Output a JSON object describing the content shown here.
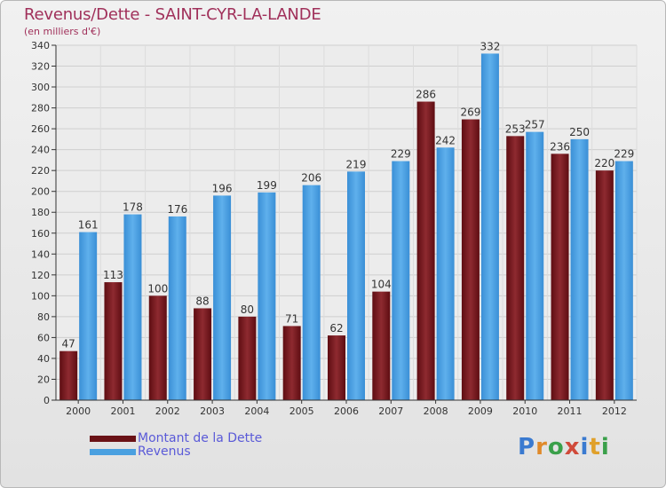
{
  "chart_data": {
    "type": "bar",
    "title": "Revenus/Dette - SAINT-CYR-LA-LANDE",
    "subtitle": "(en milliers d'€)",
    "categories": [
      "2000",
      "2001",
      "2002",
      "2003",
      "2004",
      "2005",
      "2006",
      "2007",
      "2008",
      "2009",
      "2010",
      "2011",
      "2012"
    ],
    "series": [
      {
        "name": "Montant de la Dette",
        "color": "#7a1a1e",
        "values": [
          47,
          113,
          100,
          88,
          80,
          71,
          62,
          104,
          286,
          269,
          253,
          236,
          220
        ]
      },
      {
        "name": "Revenus",
        "color": "#4aa0e0",
        "values": [
          161,
          178,
          176,
          196,
          199,
          206,
          219,
          229,
          242,
          332,
          257,
          250,
          229
        ]
      }
    ],
    "ylim": [
      0,
      340
    ],
    "yticks": [
      0,
      20,
      40,
      60,
      80,
      100,
      120,
      140,
      160,
      180,
      200,
      220,
      240,
      260,
      280,
      300,
      320,
      340
    ],
    "grid": true,
    "legend_position": "bottom-left"
  },
  "logo": {
    "text": "Proxiti",
    "letters": [
      "P",
      "r",
      "o",
      "x",
      "i",
      "t",
      "i"
    ],
    "colors": [
      "#3a7ad0",
      "#e08a2a",
      "#3aa04a",
      "#d04a3a",
      "#3a7ad0",
      "#e0a02a",
      "#3aa04a"
    ]
  }
}
